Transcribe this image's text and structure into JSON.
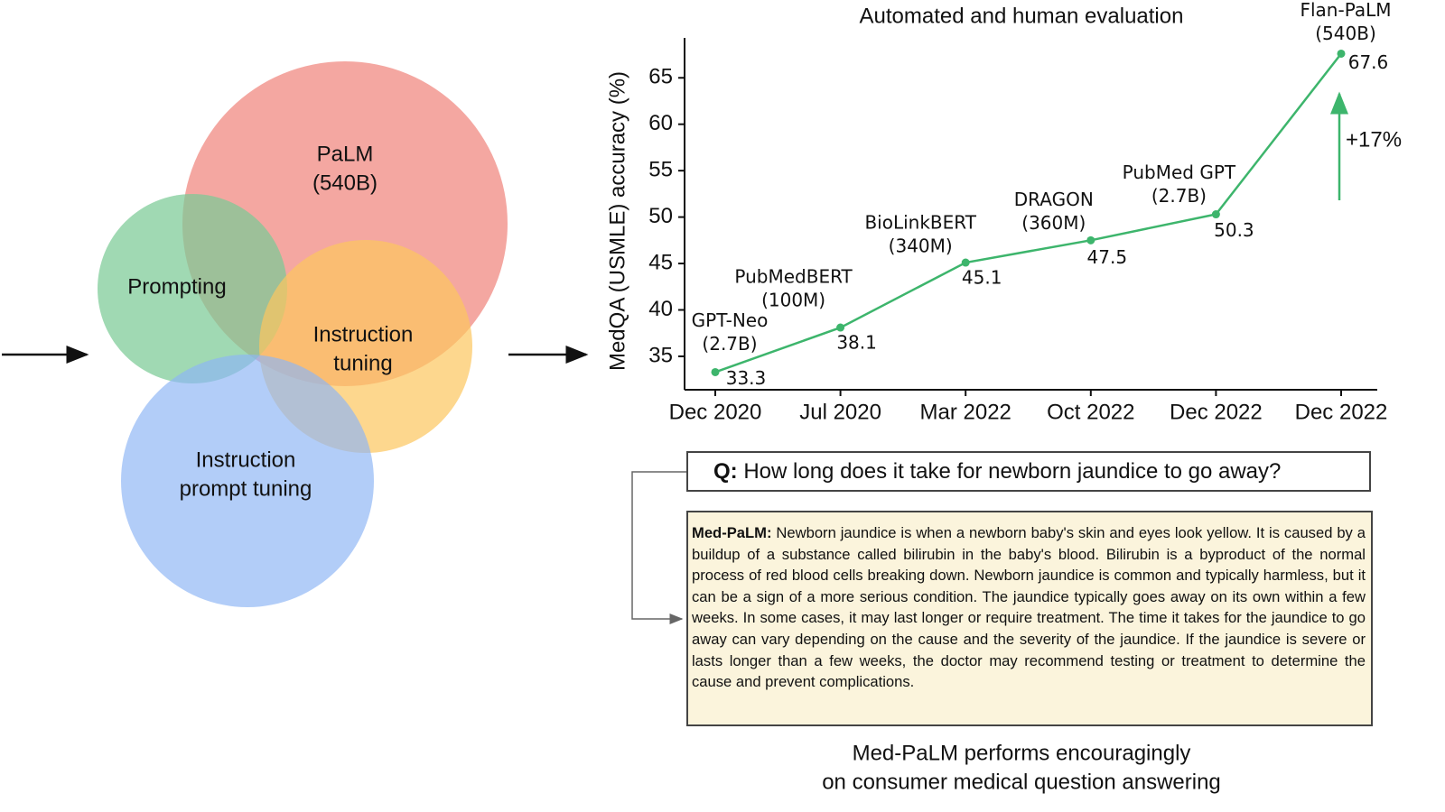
{
  "venn": {
    "sets": [
      [
        "PaLM",
        "(540B)"
      ],
      [
        "Prompting"
      ],
      [
        "Instruction",
        "tuning"
      ],
      [
        "Instruction",
        "prompt tuning"
      ]
    ]
  },
  "chart_data": {
    "type": "line",
    "title": "Automated and human evaluation",
    "y_label": "MedQA (USMLE) accuracy (%)",
    "categories": [
      "Dec 2020",
      "Jul 2020",
      "Mar 2022",
      "Oct 2022",
      "Dec 2022",
      "Dec 2022"
    ],
    "values": [
      33.3,
      38.1,
      45.1,
      47.5,
      50.3,
      67.6
    ],
    "point_labels": [
      [
        "GPT-Neo",
        "(2.7B)"
      ],
      [
        "PubMedBERT",
        "(100M)"
      ],
      [
        "BioLinkBERT",
        "(340M)"
      ],
      [
        "DRAGON",
        "(360M)"
      ],
      [
        "PubMed GPT",
        "(2.7B)"
      ],
      [
        "Flan-PaLM",
        "(540B)"
      ]
    ],
    "annotation": "+17%",
    "color": "#3db56c",
    "ylim": [
      31.4,
      69.3
    ],
    "yticks": [
      35,
      40,
      45,
      50,
      55,
      60,
      65
    ]
  },
  "qa": {
    "question_label": "Q:",
    "question": "How long does it take for newborn jaundice to go away?",
    "answer_label": "Med-PaLM:",
    "answer": "Newborn jaundice is when a newborn baby's skin and eyes look yellow. It is caused by a buildup of a substance called bilirubin in the baby's blood. Bilirubin is a byproduct of the normal process of red blood cells breaking down. Newborn jaundice is common and typically harmless, but it can be a sign of a more serious condition. The jaundice typically goes away on its own within a few weeks. In some cases, it may last longer or require treatment. The time it takes for the jaundice to go away can vary depending on the cause and the severity of the jaundice. If the jaundice is severe or lasts longer than a few weeks, the doctor may recommend testing or treatment to determine the cause and prevent complications."
  },
  "caption": [
    "Med-PaLM performs encouragingly",
    "on consumer medical question answering"
  ]
}
